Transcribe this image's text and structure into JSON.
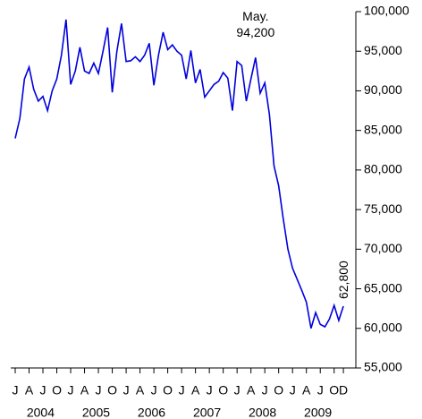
{
  "chart_data": {
    "type": "line",
    "categories": [
      "J",
      null,
      null,
      "A",
      null,
      null,
      "J",
      null,
      null,
      "O",
      null,
      null,
      "J",
      null,
      null,
      "A",
      null,
      null,
      "J",
      null,
      null,
      "O",
      null,
      null,
      "J",
      null,
      null,
      "A",
      null,
      null,
      "J",
      null,
      null,
      "O",
      null,
      null,
      "J",
      null,
      null,
      "A",
      null,
      null,
      "J",
      null,
      null,
      "O",
      null,
      null,
      "J",
      null,
      null,
      "A",
      null,
      null,
      "J",
      null,
      null,
      "O",
      null,
      null,
      "J",
      null,
      null,
      "A",
      null,
      null,
      "J",
      null,
      null,
      "O",
      null,
      "D"
    ],
    "category_groups": [
      "2004",
      "2005",
      "2006",
      "2007",
      "2008",
      "2009"
    ],
    "values": [
      84000,
      86500,
      91500,
      93000,
      90200,
      88700,
      89300,
      87500,
      90000,
      91500,
      94500,
      99000,
      90800,
      92500,
      95500,
      92500,
      92200,
      93500,
      92200,
      95000,
      98000,
      89800,
      95000,
      98500,
      93700,
      93800,
      94300,
      93700,
      94500,
      96000,
      90700,
      94500,
      97400,
      95200,
      95800,
      95000,
      94500,
      91500,
      95100,
      91000,
      92700,
      89200,
      90000,
      90800,
      91200,
      92300,
      91600,
      87500,
      93700,
      93200,
      88700,
      91500,
      94200,
      89700,
      91000,
      87000,
      80500,
      78000,
      73800,
      70000,
      67600,
      66200,
      64800,
      63300,
      60000,
      62000,
      60500,
      60200,
      61200,
      62900,
      61000,
      62800
    ],
    "value_labels": [
      null,
      null,
      null,
      null,
      null,
      null,
      null,
      null,
      null,
      null,
      null,
      null,
      null,
      null,
      null,
      null,
      null,
      null,
      null,
      null,
      null,
      null,
      null,
      null,
      null,
      null,
      null,
      null,
      null,
      null,
      null,
      null,
      null,
      null,
      null,
      null,
      null,
      null,
      null,
      null,
      null,
      null,
      null,
      null,
      null,
      null,
      null,
      null,
      null,
      null,
      null,
      null,
      "94,200",
      null,
      null,
      null,
      null,
      null,
      null,
      null,
      null,
      null,
      null,
      null,
      null,
      null,
      null,
      null,
      null,
      null,
      null,
      "62,800"
    ],
    "annotation": "May.",
    "color": "#0000dd",
    "ylim": [
      55000,
      100000
    ],
    "yticks": [
      {
        "value": 55000,
        "label": "55,000"
      },
      {
        "value": 60000,
        "label": "60,000"
      },
      {
        "value": 65000,
        "label": "65,000"
      },
      {
        "value": 70000,
        "label": "70,000"
      },
      {
        "value": 75000,
        "label": "75,000"
      },
      {
        "value": 80000,
        "label": "80,000"
      },
      {
        "value": 85000,
        "label": "85,000"
      },
      {
        "value": 90000,
        "label": "90,000"
      },
      {
        "value": 95000,
        "label": "95,000"
      },
      {
        "value": 100000,
        "label": "100,000"
      }
    ],
    "y_axis_side": "right"
  }
}
